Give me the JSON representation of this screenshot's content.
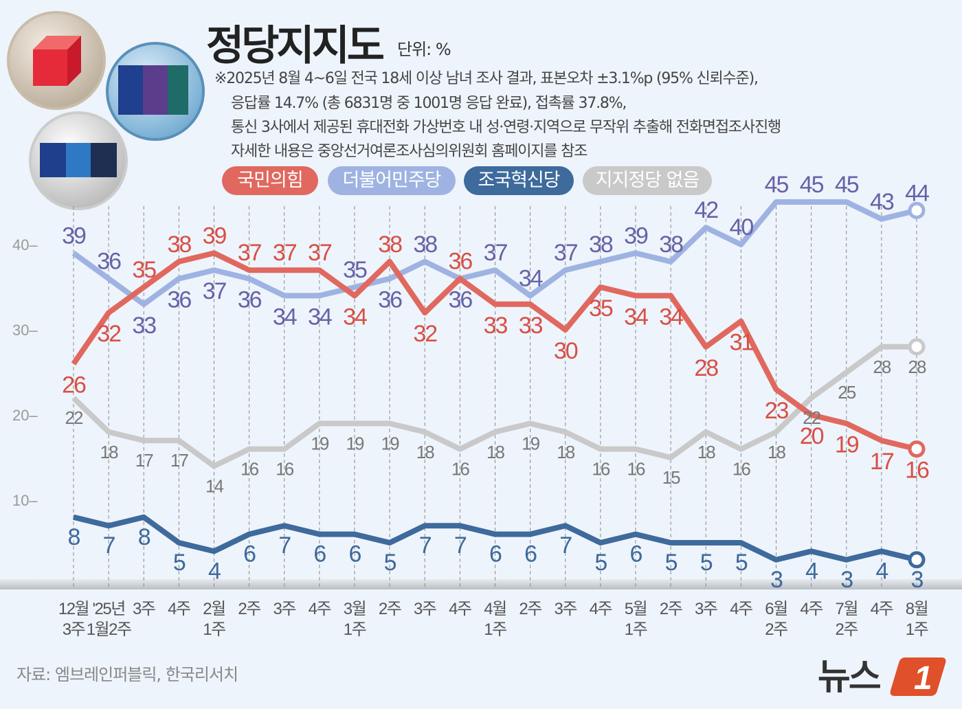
{
  "title": "정당지지도",
  "unit": "단위: %",
  "notes": [
    "※2025년 8월 4~6일 전국 18세 이상 남녀 조사 결과, 표본오차 ±3.1%p (95% 신뢰수준),",
    "응답률 14.7% (총 6831명 중 1001명 응답 완료), 접촉률 37.8%,",
    "통신 3사에서 제공된 휴대전화 가상번호 내 성·연령·지역으로 무작위 추출해 전화면접조사진행",
    "자세한 내용은 중앙선거여론조사심의위원회 홈페이지를 참조"
  ],
  "source": "자료: 엠브레인퍼블릭, 한국리서치",
  "logo_text": "뉴스1",
  "chart_data": {
    "type": "line",
    "title": "정당지지도",
    "xlabel": "",
    "ylabel": "",
    "ylim": [
      0,
      47
    ],
    "yticks": [
      10,
      20,
      30,
      40
    ],
    "grid": "vertical dashed",
    "legend_placement": "top",
    "categories": [
      [
        "12월",
        "3주"
      ],
      [
        "'25년",
        "1월2주"
      ],
      [
        "3주",
        ""
      ],
      [
        "4주",
        ""
      ],
      [
        "2월",
        "1주"
      ],
      [
        "2주",
        ""
      ],
      [
        "3주",
        ""
      ],
      [
        "4주",
        ""
      ],
      [
        "3월",
        "1주"
      ],
      [
        "2주",
        ""
      ],
      [
        "3주",
        ""
      ],
      [
        "4주",
        ""
      ],
      [
        "4월",
        "1주"
      ],
      [
        "2주",
        ""
      ],
      [
        "3주",
        ""
      ],
      [
        "4주",
        ""
      ],
      [
        "5월",
        "1주"
      ],
      [
        "2주",
        ""
      ],
      [
        "3주",
        ""
      ],
      [
        "4주",
        ""
      ],
      [
        "6월",
        "2주"
      ],
      [
        "4주",
        ""
      ],
      [
        "7월",
        "2주"
      ],
      [
        "4주",
        ""
      ],
      [
        "8월",
        "1주"
      ]
    ],
    "series": [
      {
        "name": "국민의힘",
        "color": "#e0685e",
        "label_color": "#d94f45",
        "values": [
          26,
          32,
          35,
          38,
          39,
          37,
          37,
          37,
          34,
          38,
          32,
          36,
          33,
          33,
          30,
          35,
          34,
          34,
          28,
          31,
          23,
          20,
          19,
          17,
          16
        ]
      },
      {
        "name": "더불어민주당",
        "color": "#9fb3e2",
        "label_color": "#6563a8",
        "values": [
          39,
          36,
          33,
          36,
          37,
          36,
          34,
          34,
          35,
          36,
          38,
          36,
          37,
          34,
          37,
          38,
          39,
          38,
          42,
          40,
          45,
          45,
          45,
          43,
          44
        ]
      },
      {
        "name": "조국혁신당",
        "color": "#3e6a9c",
        "label_color": "#3e6a9c",
        "values": [
          8,
          7,
          8,
          5,
          4,
          6,
          7,
          6,
          6,
          5,
          7,
          7,
          6,
          6,
          7,
          5,
          6,
          5,
          5,
          5,
          3,
          4,
          3,
          4,
          3
        ]
      },
      {
        "name": "지지정당 없음",
        "color": "#c9c9c9",
        "label_color": "#777777",
        "values": [
          22,
          18,
          17,
          17,
          14,
          16,
          16,
          19,
          19,
          19,
          18,
          16,
          18,
          19,
          18,
          16,
          16,
          15,
          18,
          16,
          18,
          22,
          25,
          28,
          28
        ]
      }
    ]
  }
}
